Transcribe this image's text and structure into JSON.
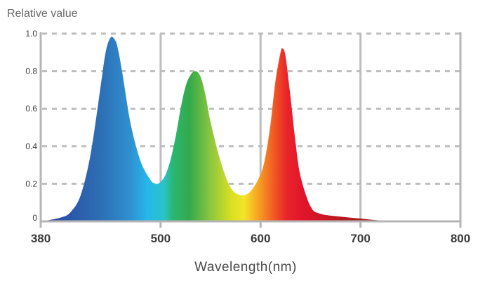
{
  "chart_data": {
    "type": "area",
    "title": "",
    "xlabel": "Wavelength(nm)",
    "ylabel": "Relative value",
    "xlim": [
      380,
      800
    ],
    "ylim": [
      0,
      1.0
    ],
    "x_ticks": [
      "380",
      "500",
      "600",
      "700",
      "800"
    ],
    "y_ticks": [
      "0",
      "0.2",
      "0.4",
      "0.6",
      "0.8",
      "1.0"
    ],
    "grid": "horizontal dashed, vertical solid",
    "fill": "visible-spectrum gradient",
    "series": [
      {
        "x": [
          380,
          400,
          410,
          420,
          430,
          440,
          445,
          450,
          455,
          458,
          462,
          470,
          480,
          490,
          495,
          500,
          505,
          510,
          515,
          520,
          525,
          530,
          535,
          540,
          545,
          550,
          560,
          570,
          580,
          590,
          600,
          605,
          610,
          615,
          620,
          622,
          625,
          630,
          635,
          640,
          650,
          660,
          680,
          700,
          720,
          740,
          760
        ],
        "y": [
          0.0,
          0.02,
          0.05,
          0.14,
          0.36,
          0.72,
          0.9,
          0.98,
          0.96,
          0.9,
          0.78,
          0.52,
          0.32,
          0.22,
          0.2,
          0.21,
          0.25,
          0.33,
          0.45,
          0.6,
          0.72,
          0.78,
          0.8,
          0.77,
          0.67,
          0.53,
          0.32,
          0.18,
          0.14,
          0.16,
          0.25,
          0.35,
          0.52,
          0.75,
          0.9,
          0.92,
          0.88,
          0.66,
          0.42,
          0.24,
          0.08,
          0.04,
          0.025,
          0.015,
          0.005,
          0.002,
          0.0
        ]
      }
    ]
  }
}
